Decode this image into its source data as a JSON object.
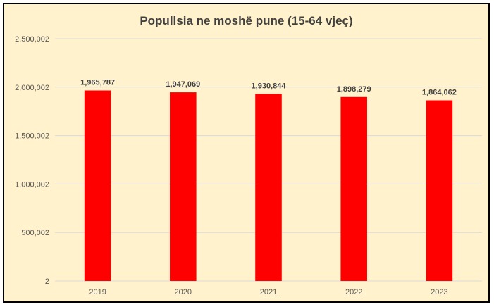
{
  "chart_data": {
    "type": "bar",
    "title": "Popullsia ne moshë pune (15-64 vjeç)",
    "categories": [
      "2019",
      "2020",
      "2021",
      "2022",
      "2023"
    ],
    "values": [
      1965787,
      1947069,
      1930844,
      1898279,
      1864062
    ],
    "data_labels": [
      "1,965,787",
      "1,947,069",
      "1,930,844",
      "1,898,279",
      "1,864,062"
    ],
    "y_ticks": [
      2,
      500002,
      1000002,
      1500002,
      2000002,
      2500002
    ],
    "y_tick_labels": [
      "2",
      "500,002",
      "1,000,002",
      "1,500,002",
      "2,000,002",
      "2,500,002"
    ],
    "ylim": [
      2,
      2500002
    ],
    "xlabel": "",
    "ylabel": "",
    "grid": true,
    "legend": "none",
    "colors": {
      "bar": "#ff0000",
      "background": "#fff2cc",
      "border": "#000000",
      "grid": "#d9d9d9"
    }
  }
}
